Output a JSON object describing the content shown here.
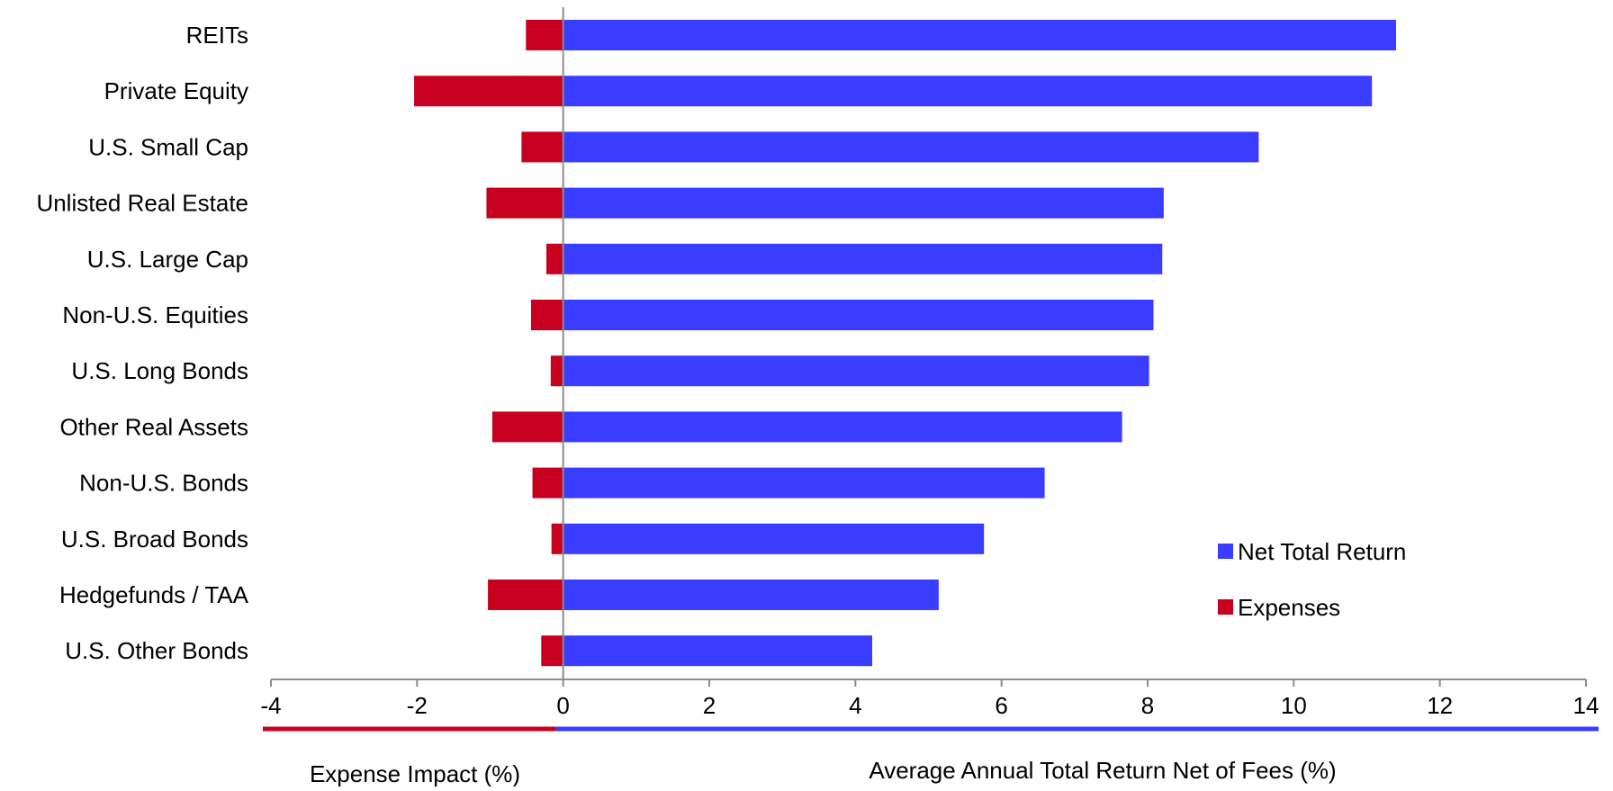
{
  "chart_data": {
    "type": "bar",
    "orientation": "horizontal",
    "categories": [
      "REITs",
      "Private Equity",
      "U.S. Small Cap",
      "Unlisted Real Estate",
      "U.S. Large Cap",
      "Non-U.S. Equities",
      "U.S. Long Bonds",
      "Other Real Assets",
      "Non-U.S. Bonds",
      "U.S. Broad Bonds",
      "Hedgefunds / TAA",
      "U.S. Other Bonds"
    ],
    "series": [
      {
        "name": "Net Total Return",
        "color": "#3a3dff",
        "values": [
          11.4,
          11.07,
          9.52,
          8.22,
          8.2,
          8.08,
          8.02,
          7.65,
          6.59,
          5.76,
          5.14,
          4.23
        ]
      },
      {
        "name": "Expenses",
        "color": "#c8001f",
        "values": [
          -0.51,
          -2.04,
          -0.57,
          -1.05,
          -0.23,
          -0.44,
          -0.17,
          -0.97,
          -0.42,
          -0.16,
          -1.03,
          -0.3
        ]
      }
    ],
    "xlim": [
      -4,
      14
    ],
    "x_ticks": [
      -4,
      -2,
      0,
      2,
      4,
      6,
      8,
      10,
      12,
      14
    ],
    "xlabel_left": "Expense Impact (%)",
    "xlabel_right": "Average Annual Total Return Net of Fees (%)",
    "legend_position": "bottom-right",
    "grid": false
  }
}
